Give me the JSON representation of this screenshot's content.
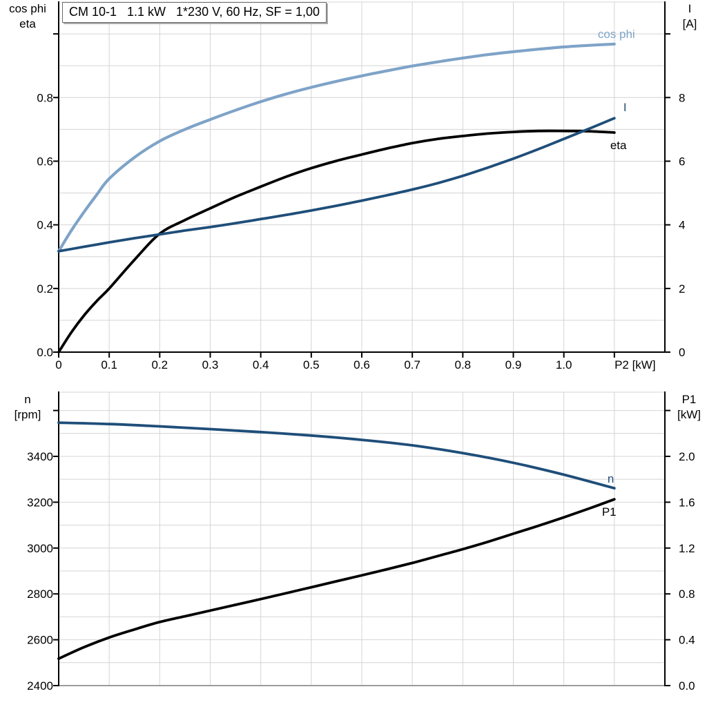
{
  "page": {
    "background": "#ffffff"
  },
  "chart_data": {
    "type": "line",
    "title": "CM 10-1   1.1 kW   1*230 V, 60 Hz, SF = 1,00",
    "grid": true,
    "legend_position": "curve-end-labels",
    "colors": {
      "dark_blue": "#1f4e79",
      "light_blue": "#7fa3c8",
      "black": "#000000",
      "grid": "#d4d4d4",
      "frame_gray": "#9c9c9c",
      "axis": "#000000"
    },
    "plots": [
      {
        "name": "motor-electrical-plot",
        "title_box": "CM 10-1   1.1 kW   1*230 V, 60 Hz, SF = 1,00",
        "x_axis": {
          "label": "P2 [kW]",
          "min": 0,
          "max": 1.2,
          "grid_values": [
            0.1,
            0.2,
            0.3,
            0.4,
            0.5,
            0.6,
            0.7,
            0.8,
            0.9,
            1.0,
            1.1
          ],
          "ticks": [
            {
              "v": 0,
              "label": "0"
            },
            {
              "v": 0.1,
              "label": "0.1"
            },
            {
              "v": 0.2,
              "label": "0.2"
            },
            {
              "v": 0.3,
              "label": "0.3"
            },
            {
              "v": 0.4,
              "label": "0.4"
            },
            {
              "v": 0.5,
              "label": "0.5"
            },
            {
              "v": 0.6,
              "label": "0.6"
            },
            {
              "v": 0.7,
              "label": "0.7"
            },
            {
              "v": 0.8,
              "label": "0.8"
            },
            {
              "v": 0.9,
              "label": "0.9"
            },
            {
              "v": 1.0,
              "label": "1.0"
            },
            {
              "v": 1.1,
              "label": "P2 [kW]",
              "dx": 30
            }
          ]
        },
        "y_left": {
          "title": "cos phi\neta",
          "min": 0,
          "max": 1.1,
          "grid_values": [
            0.1,
            0.2,
            0.3,
            0.4,
            0.5,
            0.6,
            0.7,
            0.8,
            0.9,
            1.0,
            1.1
          ],
          "ticks": [
            {
              "v": 0,
              "label": "0.0"
            },
            {
              "v": 0.2,
              "label": "0.2"
            },
            {
              "v": 0.4,
              "label": "0.4"
            },
            {
              "v": 0.6,
              "label": "0.6"
            },
            {
              "v": 0.8,
              "label": "0.8"
            },
            {
              "v": 1.0,
              "label": ""
            }
          ]
        },
        "y_right": {
          "title": "I\n[A]",
          "min": 0,
          "max": 11,
          "ticks": [
            {
              "v": 0,
              "label": "0"
            },
            {
              "v": 2,
              "label": "2"
            },
            {
              "v": 4,
              "label": "4"
            },
            {
              "v": 6,
              "label": "6"
            },
            {
              "v": 8,
              "label": "8"
            },
            {
              "v": 10,
              "label": ""
            }
          ]
        },
        "series": [
          {
            "name": "cos phi",
            "axis": "left",
            "color": "#7fa3c8",
            "stroke_width": 4.2,
            "label": {
              "text": "cos phi",
              "dx": -24,
              "dy": -9,
              "anchor": "start"
            },
            "points": [
              [
                0,
                0.317
              ],
              [
                0.025,
                0.382
              ],
              [
                0.05,
                0.44
              ],
              [
                0.075,
                0.494
              ],
              [
                0.1,
                0.545
              ],
              [
                0.15,
                0.612
              ],
              [
                0.2,
                0.663
              ],
              [
                0.25,
                0.7
              ],
              [
                0.3,
                0.731
              ],
              [
                0.35,
                0.76
              ],
              [
                0.4,
                0.787
              ],
              [
                0.45,
                0.811
              ],
              [
                0.5,
                0.832
              ],
              [
                0.55,
                0.851
              ],
              [
                0.6,
                0.868
              ],
              [
                0.65,
                0.884
              ],
              [
                0.7,
                0.899
              ],
              [
                0.75,
                0.912
              ],
              [
                0.8,
                0.924
              ],
              [
                0.85,
                0.935
              ],
              [
                0.9,
                0.944
              ],
              [
                0.95,
                0.952
              ],
              [
                1.0,
                0.959
              ],
              [
                1.05,
                0.964
              ],
              [
                1.1,
                0.968
              ]
            ]
          },
          {
            "name": "eta",
            "axis": "left",
            "color": "#000000",
            "stroke_width": 3.8,
            "label": {
              "text": "eta",
              "dx": -6,
              "dy": 24,
              "anchor": "start"
            },
            "points": [
              [
                0,
                0
              ],
              [
                0.025,
                0.062
              ],
              [
                0.05,
                0.115
              ],
              [
                0.075,
                0.16
              ],
              [
                0.1,
                0.2
              ],
              [
                0.15,
                0.29
              ],
              [
                0.2,
                0.372
              ],
              [
                0.25,
                0.415
              ],
              [
                0.3,
                0.452
              ],
              [
                0.35,
                0.488
              ],
              [
                0.4,
                0.52
              ],
              [
                0.45,
                0.551
              ],
              [
                0.5,
                0.578
              ],
              [
                0.55,
                0.601
              ],
              [
                0.6,
                0.621
              ],
              [
                0.65,
                0.64
              ],
              [
                0.7,
                0.657
              ],
              [
                0.75,
                0.67
              ],
              [
                0.8,
                0.679
              ],
              [
                0.85,
                0.687
              ],
              [
                0.9,
                0.692
              ],
              [
                0.95,
                0.695
              ],
              [
                1.0,
                0.695
              ],
              [
                1.05,
                0.694
              ],
              [
                1.1,
                0.69
              ]
            ]
          },
          {
            "name": "I",
            "axis": "right",
            "color": "#1f4e79",
            "stroke_width": 3.8,
            "label": {
              "text": "I",
              "dx": 13,
              "dy": -10,
              "anchor": "start"
            },
            "points": [
              [
                0,
                3.17
              ],
              [
                0.05,
                3.31
              ],
              [
                0.1,
                3.45
              ],
              [
                0.15,
                3.58
              ],
              [
                0.2,
                3.7
              ],
              [
                0.25,
                3.82
              ],
              [
                0.3,
                3.93
              ],
              [
                0.35,
                4.05
              ],
              [
                0.4,
                4.18
              ],
              [
                0.45,
                4.31
              ],
              [
                0.5,
                4.45
              ],
              [
                0.55,
                4.6
              ],
              [
                0.6,
                4.76
              ],
              [
                0.65,
                4.93
              ],
              [
                0.7,
                5.11
              ],
              [
                0.75,
                5.31
              ],
              [
                0.8,
                5.54
              ],
              [
                0.85,
                5.8
              ],
              [
                0.9,
                6.08
              ],
              [
                0.95,
                6.38
              ],
              [
                1.0,
                6.7
              ],
              [
                1.05,
                7.02
              ],
              [
                1.1,
                7.35
              ]
            ]
          }
        ]
      },
      {
        "name": "speed-power-plot",
        "x_axis": {
          "label": "",
          "min": 0,
          "max": 1.2,
          "grid_values": [
            0.1,
            0.2,
            0.3,
            0.4,
            0.5,
            0.6,
            0.7,
            0.8,
            0.9,
            1.0,
            1.1
          ],
          "ticks": []
        },
        "y_left": {
          "title": "n\n[rpm]",
          "min": 2400,
          "max": 3680,
          "grid_values": [
            2500,
            2600,
            2700,
            2800,
            2900,
            3000,
            3100,
            3200,
            3300,
            3400,
            3500,
            3600,
            3680
          ],
          "ticks": [
            {
              "v": 2400,
              "label": "2400"
            },
            {
              "v": 2600,
              "label": "2600"
            },
            {
              "v": 2800,
              "label": "2800"
            },
            {
              "v": 3000,
              "label": "3000"
            },
            {
              "v": 3200,
              "label": "3200"
            },
            {
              "v": 3400,
              "label": "3400"
            },
            {
              "v": 3600,
              "label": ""
            }
          ]
        },
        "y_right": {
          "title": "P1\n[kW]",
          "min": 0,
          "max": 2.56,
          "ticks": [
            {
              "v": 0,
              "label": "0.0"
            },
            {
              "v": 0.4,
              "label": "0.4"
            },
            {
              "v": 0.8,
              "label": "0.8"
            },
            {
              "v": 1.2,
              "label": "1.2"
            },
            {
              "v": 1.6,
              "label": "1.6"
            },
            {
              "v": 2.0,
              "label": "2.0"
            },
            {
              "v": 2.4,
              "label": ""
            }
          ]
        },
        "series": [
          {
            "name": "n",
            "axis": "left",
            "color": "#1f4e79",
            "stroke_width": 3.8,
            "label": {
              "text": "n",
              "dx": -10,
              "dy": -8,
              "anchor": "start"
            },
            "points": [
              [
                0,
                3547
              ],
              [
                0.1,
                3541
              ],
              [
                0.2,
                3531
              ],
              [
                0.3,
                3519
              ],
              [
                0.4,
                3506
              ],
              [
                0.5,
                3491
              ],
              [
                0.6,
                3472
              ],
              [
                0.7,
                3448
              ],
              [
                0.8,
                3414
              ],
              [
                0.9,
                3372
              ],
              [
                1.0,
                3320
              ],
              [
                1.1,
                3261
              ]
            ]
          },
          {
            "name": "P1",
            "axis": "right",
            "color": "#000000",
            "stroke_width": 3.8,
            "label": {
              "text": "P1",
              "dx": -18,
              "dy": 24,
              "anchor": "start"
            },
            "points": [
              [
                0,
                0.235
              ],
              [
                0.05,
                0.335
              ],
              [
                0.1,
                0.42
              ],
              [
                0.15,
                0.49
              ],
              [
                0.2,
                0.555
              ],
              [
                0.25,
                0.605
              ],
              [
                0.3,
                0.655
              ],
              [
                0.35,
                0.705
              ],
              [
                0.4,
                0.755
              ],
              [
                0.45,
                0.806
              ],
              [
                0.5,
                0.858
              ],
              [
                0.55,
                0.91
              ],
              [
                0.6,
                0.962
              ],
              [
                0.65,
                1.015
              ],
              [
                0.7,
                1.07
              ],
              [
                0.75,
                1.13
              ],
              [
                0.8,
                1.19
              ],
              [
                0.85,
                1.255
              ],
              [
                0.9,
                1.325
              ],
              [
                0.95,
                1.395
              ],
              [
                1.0,
                1.468
              ],
              [
                1.05,
                1.545
              ],
              [
                1.1,
                1.625
              ]
            ]
          }
        ]
      }
    ]
  }
}
